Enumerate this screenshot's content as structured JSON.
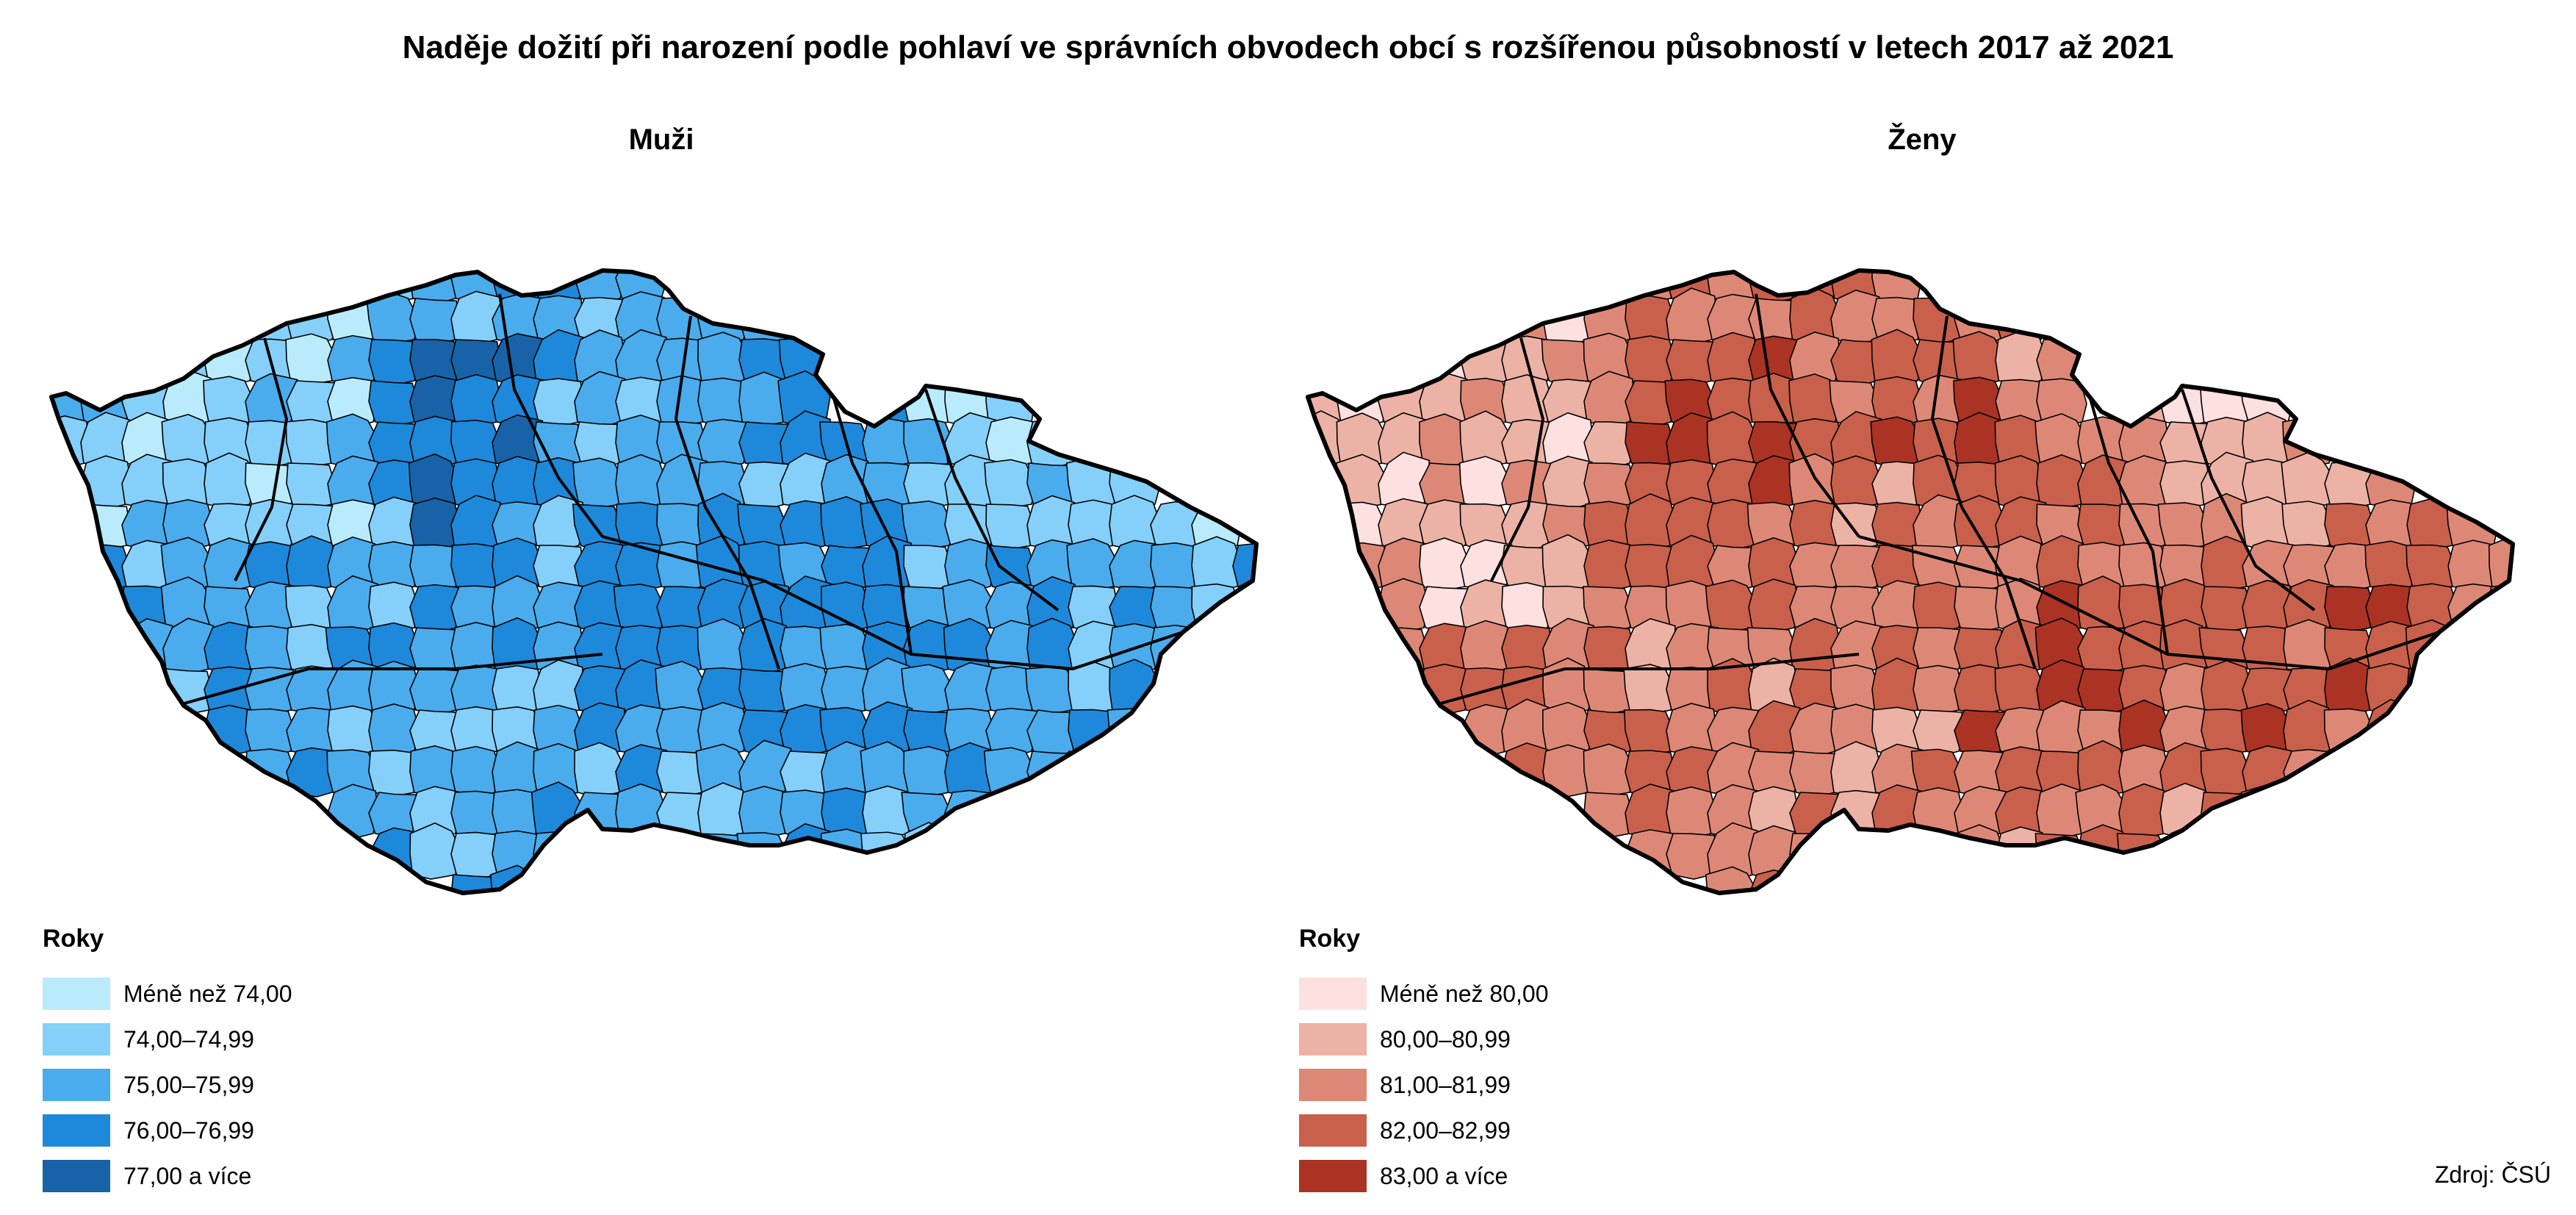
{
  "title": "Naděje dožití při narození podle pohlaví ve správních obvodech obcí s rozšířenou působností v letech 2017 až 2021",
  "source": "Zdroj: ČSÚ",
  "panels": [
    {
      "subtitle": "Muži",
      "legend_title": "Roky",
      "legend": [
        {
          "label": "Méně než 74,00",
          "color": "#b9ebfd"
        },
        {
          "label": "74,00–74,99",
          "color": "#85cffb"
        },
        {
          "label": "75,00–75,99",
          "color": "#4aacec"
        },
        {
          "label": "76,00–76,99",
          "color": "#1e89da"
        },
        {
          "label": "77,00 a více",
          "color": "#1863a8"
        }
      ]
    },
    {
      "subtitle": "Ženy",
      "legend_title": "Roky",
      "legend": [
        {
          "label": "Méně než 80,00",
          "color": "#fde0e0"
        },
        {
          "label": "80,00–80,99",
          "color": "#ecb2a6"
        },
        {
          "label": "81,00–81,99",
          "color": "#dd8877"
        },
        {
          "label": "82,00–82,99",
          "color": "#c9604c"
        },
        {
          "label": "83,00 a více",
          "color": "#ab3324"
        }
      ]
    }
  ]
}
